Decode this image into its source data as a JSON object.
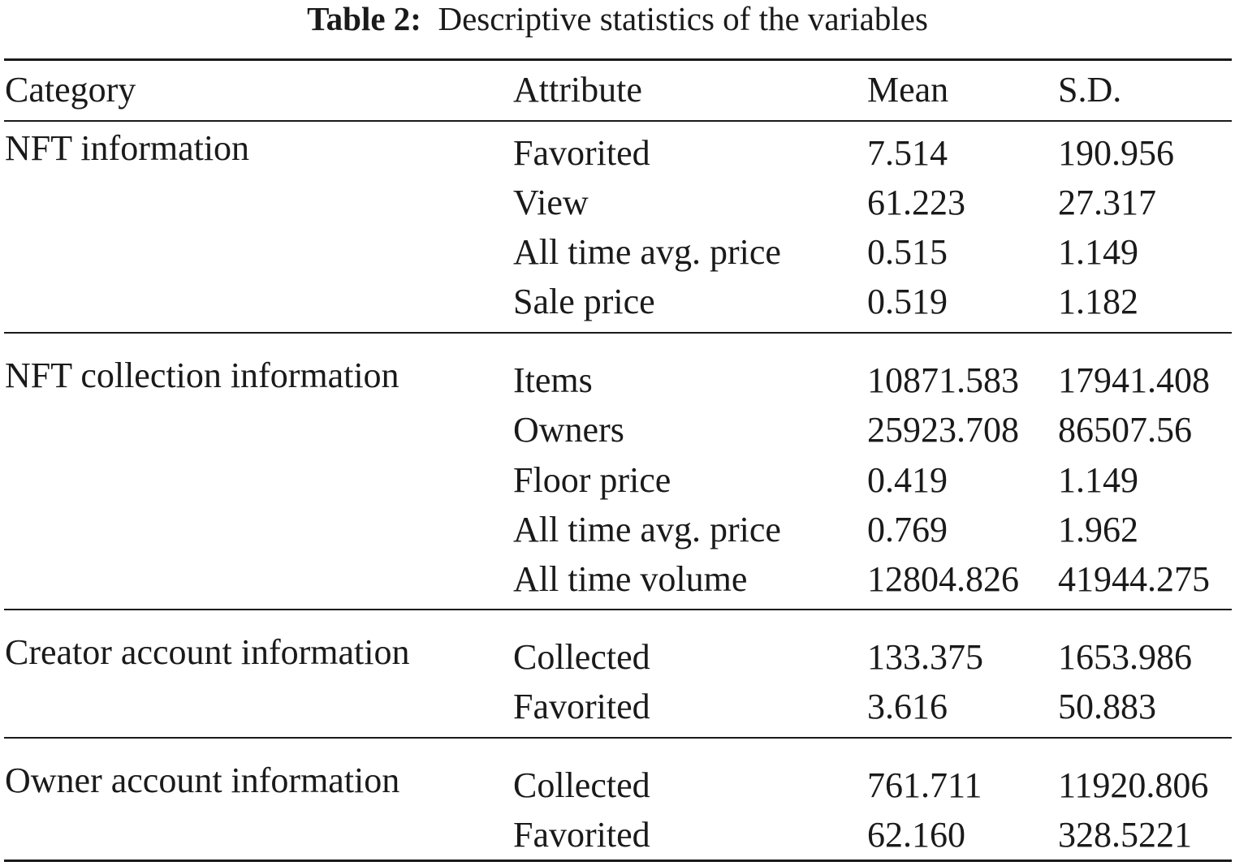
{
  "caption": {
    "label": "Table 2:",
    "text": "Descriptive statistics of the variables"
  },
  "header": {
    "category": "Category",
    "attribute": "Attribute",
    "mean": "Mean",
    "sd": "S.D."
  },
  "groups": [
    {
      "category": "NFT information",
      "rows": [
        {
          "attribute": "Favorited",
          "mean": "7.514",
          "sd": "190.956"
        },
        {
          "attribute": "View",
          "mean": "61.223",
          "sd": "27.317"
        },
        {
          "attribute": "All time avg. price",
          "mean": "0.515",
          "sd": "1.149"
        },
        {
          "attribute": "Sale price",
          "mean": "0.519",
          "sd": "1.182"
        }
      ]
    },
    {
      "category": "NFT collection information",
      "rows": [
        {
          "attribute": "Items",
          "mean": "10871.583",
          "sd": "17941.408"
        },
        {
          "attribute": "Owners",
          "mean": "25923.708",
          "sd": "86507.56"
        },
        {
          "attribute": "Floor price",
          "mean": "0.419",
          "sd": "1.149"
        },
        {
          "attribute": "All time avg. price",
          "mean": "0.769",
          "sd": "1.962"
        },
        {
          "attribute": "All time volume",
          "mean": "12804.826",
          "sd": "41944.275"
        }
      ]
    },
    {
      "category": "Creator account information",
      "rows": [
        {
          "attribute": "Collected",
          "mean": "133.375",
          "sd": "1653.986"
        },
        {
          "attribute": "Favorited",
          "mean": "3.616",
          "sd": "50.883"
        }
      ]
    },
    {
      "category": "Owner account information",
      "rows": [
        {
          "attribute": "Collected",
          "mean": "761.711",
          "sd": "11920.806"
        },
        {
          "attribute": "Favorited",
          "mean": "62.160",
          "sd": "328.5221"
        }
      ]
    }
  ]
}
